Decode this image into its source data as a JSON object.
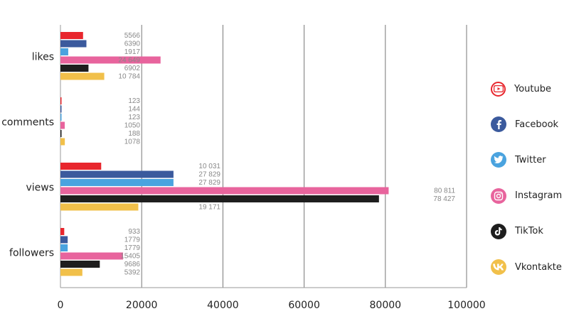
{
  "chart_data": {
    "type": "bar",
    "orientation": "horizontal",
    "categories": [
      "likes",
      "comments",
      "views",
      "followers"
    ],
    "series": [
      {
        "name": "Youtube",
        "color": "#e8262d",
        "icon": "youtube-icon",
        "values": [
          5566,
          123,
          10031,
          933
        ],
        "labels": [
          "5566",
          "123",
          "10 031",
          "933"
        ]
      },
      {
        "name": "Facebook",
        "color": "#3b5a9d",
        "icon": "facebook-icon",
        "values": [
          6390,
          144,
          27829,
          1779
        ],
        "labels": [
          "6390",
          "144",
          "27 829",
          "1779"
        ]
      },
      {
        "name": "Twitter",
        "color": "#4aa3df",
        "icon": "twitter-icon",
        "values": [
          1917,
          123,
          27829,
          1779
        ],
        "labels": [
          "1917",
          "123",
          "27 829",
          "1779"
        ]
      },
      {
        "name": "Instagram",
        "color": "#e8649d",
        "icon": "instagram-icon",
        "values": [
          24649,
          1050,
          80811,
          15405
        ],
        "labels": [
          "24 649",
          "1050",
          "80 811",
          "15405"
        ]
      },
      {
        "name": "TikTok",
        "color": "#1e1e1e",
        "icon": "tiktok-icon",
        "values": [
          6902,
          188,
          78427,
          9686
        ],
        "labels": [
          "6902",
          "188",
          "78 427",
          "9686"
        ]
      },
      {
        "name": "Vkontakte",
        "color": "#f1c04a",
        "icon": "vk-icon",
        "values": [
          10784,
          1078,
          19171,
          5392
        ],
        "labels": [
          "10 784",
          "1078",
          "19 171",
          "5392"
        ]
      }
    ],
    "xlim": [
      0,
      100000
    ],
    "xticks": [
      0,
      20000,
      40000,
      60000,
      80000,
      100000
    ],
    "xtick_labels": [
      "0",
      "20000",
      "40000",
      "60000",
      "80000",
      "100000"
    ],
    "grid": "vertical",
    "legend_position": "right",
    "title": "",
    "xlabel": "",
    "ylabel": ""
  }
}
